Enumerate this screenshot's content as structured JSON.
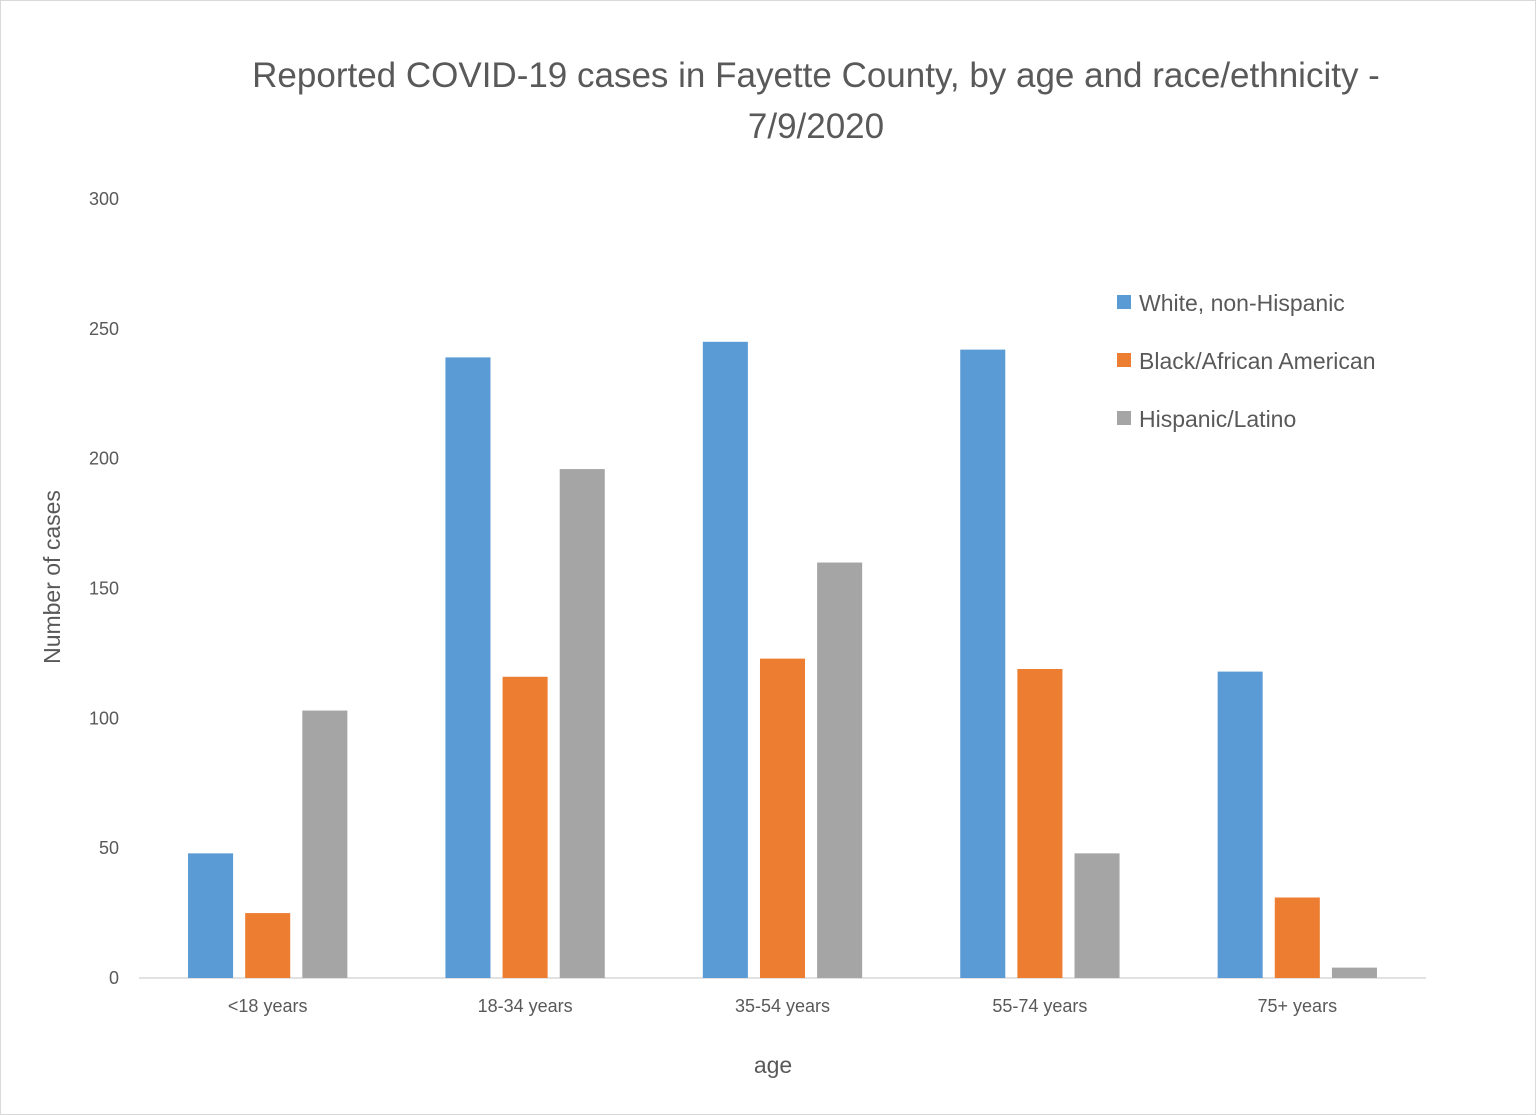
{
  "chart_data": {
    "type": "bar",
    "title_lines": [
      "Reported COVID-19 cases in Fayette County, by age and race/ethnicity -",
      "7/9/2020"
    ],
    "xlabel": "age",
    "ylabel": "Number of cases",
    "ylim": [
      0,
      300
    ],
    "yticks": [
      "0",
      "50",
      "100",
      "150",
      "200",
      "250",
      "300"
    ],
    "grid": false,
    "legend_position": "top-right",
    "categories": [
      "<18 years",
      "18-34 years",
      "35-54 years",
      "55-74 years",
      "75+ years"
    ],
    "series": [
      {
        "name": "White, non-Hispanic",
        "color": "#5b9bd5",
        "values": [
          48,
          239,
          245,
          242,
          118
        ]
      },
      {
        "name": "Black/African American",
        "color": "#ed7d31",
        "values": [
          25,
          116,
          123,
          119,
          31
        ]
      },
      {
        "name": "Hispanic/Latino",
        "color": "#a5a5a5",
        "values": [
          103,
          196,
          160,
          48,
          4
        ]
      }
    ]
  }
}
